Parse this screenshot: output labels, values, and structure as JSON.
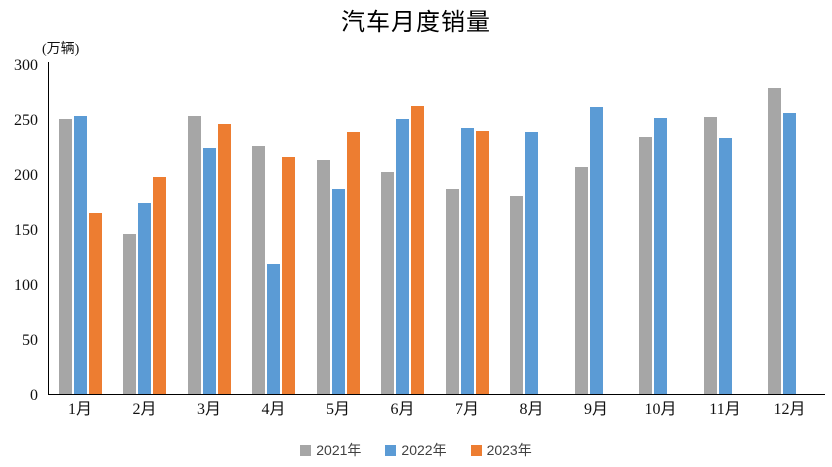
{
  "chart_data": {
    "type": "bar",
    "title": "汽车月度销量",
    "ylabel": "(万辆)",
    "categories": [
      "1月",
      "2月",
      "3月",
      "4月",
      "5月",
      "6月",
      "7月",
      "8月",
      "9月",
      "10月",
      "11月",
      "12月"
    ],
    "series": [
      {
        "name": "2021年",
        "color": "#A6A6A6",
        "values": [
          250.3,
          145.5,
          252.6,
          225.2,
          212.8,
          201.5,
          186.4,
          179.9,
          206.7,
          233.3,
          252.2,
          278.6
        ]
      },
      {
        "name": "2022年",
        "color": "#5B9BD5",
        "values": [
          253.1,
          173.7,
          223.4,
          118.1,
          186.2,
          250.2,
          242.0,
          238.3,
          261.0,
          250.5,
          232.8,
          255.6
        ]
      },
      {
        "name": "2023年",
        "color": "#ED7D31",
        "values": [
          164.9,
          197.6,
          245.1,
          215.9,
          238.2,
          262.2,
          238.8,
          null,
          null,
          null,
          null,
          null
        ]
      }
    ],
    "ylim": [
      0,
      300
    ],
    "y_ticks": [
      0,
      50,
      100,
      150,
      200,
      250,
      300
    ],
    "grid": false,
    "legend_position": "bottom"
  }
}
